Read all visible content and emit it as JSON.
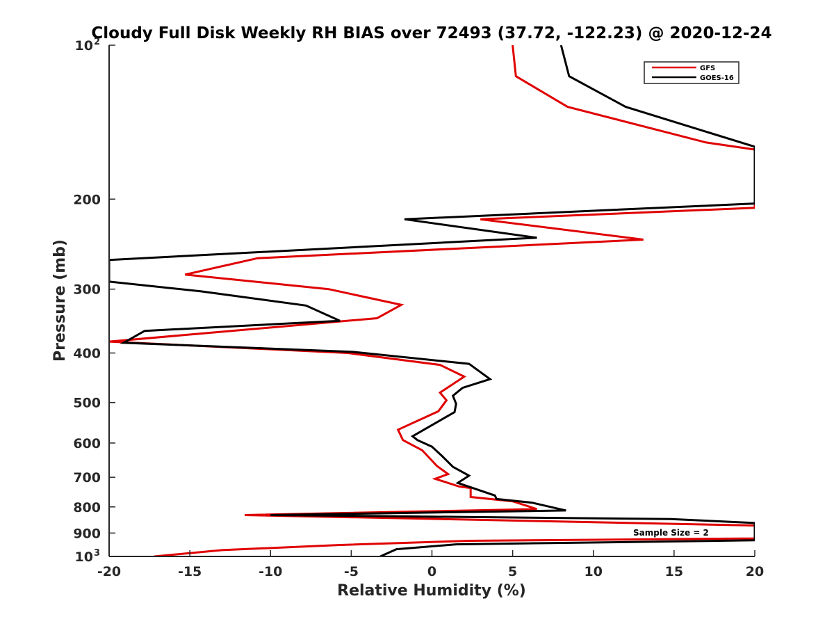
{
  "chart_data": {
    "type": "line",
    "title": "Cloudy Full Disk Weekly RH BIAS over 72493 (37.72, -122.23) @ 2020-12-24",
    "xlabel": "Relative Humidity (%)",
    "ylabel": "Pressure (mb)",
    "xlim": [
      -20,
      20
    ],
    "ylim": [
      100,
      1000
    ],
    "y_scale": "log",
    "y_reversed": true,
    "grid": false,
    "legend_position": "top-right",
    "x_ticks": [
      "-20",
      "-15",
      "-10",
      "-5",
      "0",
      "5",
      "10",
      "15",
      "20"
    ],
    "y_ticks": [
      {
        "label": "10",
        "exp": "2",
        "value": 100
      },
      {
        "label": "200",
        "exp": "",
        "value": 200
      },
      {
        "label": "300",
        "exp": "",
        "value": 300
      },
      {
        "label": "400",
        "exp": "",
        "value": 400
      },
      {
        "label": "500",
        "exp": "",
        "value": 500
      },
      {
        "label": "600",
        "exp": "",
        "value": 600
      },
      {
        "label": "700",
        "exp": "",
        "value": 700
      },
      {
        "label": "800",
        "exp": "",
        "value": 800
      },
      {
        "label": "900",
        "exp": "",
        "value": 900
      },
      {
        "label": "10",
        "exp": "3",
        "value": 1000
      }
    ],
    "annotation": "Sample Size = 2",
    "series": [
      {
        "name": "GFS",
        "color": "#e00000",
        "points": [
          [
            5.0,
            100
          ],
          [
            5.2,
            115
          ],
          [
            8.4,
            132
          ],
          [
            17.0,
            155
          ],
          [
            20.0,
            160
          ],
          [
            20.0,
            208
          ],
          [
            3.0,
            219
          ],
          [
            13.1,
            240
          ],
          [
            -10.8,
            261
          ],
          [
            -15.3,
            281
          ],
          [
            -6.4,
            300
          ],
          [
            -1.9,
            322
          ],
          [
            -3.4,
            342
          ],
          [
            -20.0,
            380
          ],
          [
            -5.2,
            400
          ],
          [
            0.5,
            422
          ],
          [
            2.0,
            445
          ],
          [
            0.5,
            478
          ],
          [
            0.9,
            495
          ],
          [
            0.4,
            520
          ],
          [
            -2.1,
            565
          ],
          [
            -1.8,
            592
          ],
          [
            -0.6,
            620
          ],
          [
            0.3,
            665
          ],
          [
            1.0,
            690
          ],
          [
            0.2,
            705
          ],
          [
            1.7,
            730
          ],
          [
            2.4,
            735
          ],
          [
            2.4,
            765
          ],
          [
            5.0,
            780
          ],
          [
            6.5,
            808
          ],
          [
            -11.6,
            830
          ],
          [
            20.0,
            870
          ],
          [
            20.0,
            922
          ],
          [
            2.3,
            932
          ],
          [
            -5.8,
            950
          ],
          [
            -13.0,
            972
          ],
          [
            -17.2,
            1000
          ]
        ]
      },
      {
        "name": "GOES-16",
        "color": "#000000",
        "points": [
          [
            8.0,
            100
          ],
          [
            8.5,
            115
          ],
          [
            12.0,
            132
          ],
          [
            20.0,
            158
          ],
          [
            20.0,
            204
          ],
          [
            -1.7,
            219
          ],
          [
            6.5,
            238
          ],
          [
            -20.0,
            263
          ],
          [
            -20.0,
            290
          ],
          [
            -14.3,
            303
          ],
          [
            -7.8,
            323
          ],
          [
            -5.7,
            346
          ],
          [
            -17.8,
            362
          ],
          [
            -19.1,
            382
          ],
          [
            -4.9,
            398
          ],
          [
            2.3,
            420
          ],
          [
            3.6,
            450
          ],
          [
            1.9,
            468
          ],
          [
            1.3,
            485
          ],
          [
            1.5,
            503
          ],
          [
            1.4,
            522
          ],
          [
            -1.2,
            582
          ],
          [
            -0.9,
            592
          ],
          [
            0.0,
            610
          ],
          [
            0.6,
            635
          ],
          [
            1.3,
            668
          ],
          [
            2.3,
            695
          ],
          [
            1.6,
            718
          ],
          [
            3.9,
            760
          ],
          [
            4.0,
            772
          ],
          [
            6.2,
            785
          ],
          [
            8.3,
            813
          ],
          [
            -10.0,
            830
          ],
          [
            14.8,
            845
          ],
          [
            20.0,
            860
          ],
          [
            20.0,
            930
          ],
          [
            1.5,
            947
          ],
          [
            -2.2,
            968
          ],
          [
            -3.2,
            1000
          ]
        ]
      }
    ]
  }
}
